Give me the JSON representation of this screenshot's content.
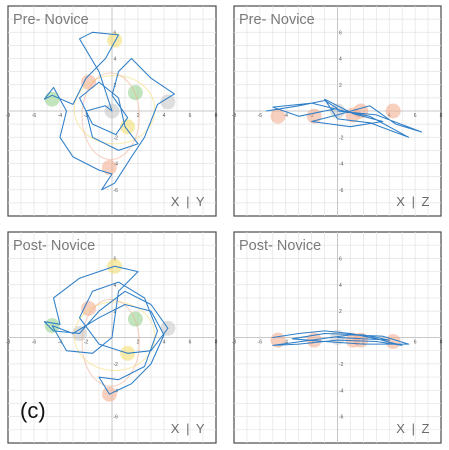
{
  "panel_label": "(c)",
  "colors": {
    "path": "#2f7fc8",
    "marker_orange": "#f2a98c",
    "marker_yellow": "#f3dc6a",
    "marker_green": "#8fcf86",
    "marker_gray": "#c4c4c4"
  },
  "chart_data": [
    {
      "id": "pre-xy",
      "type": "line",
      "title": "Pre- Novice",
      "plane_label": "X | Y",
      "xlim": [
        -8,
        8
      ],
      "ylim": [
        -8,
        8
      ],
      "xticks": [
        "-8",
        "-6",
        "-4",
        "-2",
        "0",
        "2",
        "4",
        "6",
        "8"
      ],
      "yticks": [
        "-8",
        "-6",
        "-4",
        "-2",
        "0",
        "2",
        "4",
        "6",
        "8"
      ],
      "markers": [
        {
          "x": 0.2,
          "y": 5.4,
          "color": "#f3dc6a"
        },
        {
          "x": -1.8,
          "y": 2.2,
          "color": "#f2a98c"
        },
        {
          "x": 1.8,
          "y": 1.4,
          "color": "#8fcf86"
        },
        {
          "x": -4.6,
          "y": 0.9,
          "color": "#8fcf86"
        },
        {
          "x": 4.3,
          "y": 0.7,
          "color": "#c4c4c4"
        },
        {
          "x": 0.0,
          "y": 0.0,
          "color": "#c4c4c4"
        },
        {
          "x": 1.2,
          "y": -1.2,
          "color": "#f3dc6a"
        },
        {
          "x": -0.2,
          "y": -4.3,
          "color": "#f2a98c"
        }
      ],
      "path": [
        [
          0,
          0
        ],
        [
          -1,
          3
        ],
        [
          -2.5,
          5.5
        ],
        [
          -1.5,
          6
        ],
        [
          0.5,
          5.8
        ],
        [
          -0.5,
          4
        ],
        [
          -2,
          2.5
        ],
        [
          -3,
          0.5
        ],
        [
          -4.6,
          1.2
        ],
        [
          -5.2,
          0.9
        ],
        [
          -4.5,
          1.8
        ],
        [
          -3.5,
          0
        ],
        [
          -4,
          -2
        ],
        [
          -3,
          -3.5
        ],
        [
          -1,
          -4.5
        ],
        [
          0,
          -4.8
        ],
        [
          -0.8,
          -6
        ],
        [
          0.2,
          -5.5
        ],
        [
          1.5,
          -3.5
        ],
        [
          2.5,
          -2
        ],
        [
          3.5,
          0.5
        ],
        [
          4.8,
          1.3
        ],
        [
          3,
          2.5
        ],
        [
          1.5,
          4
        ],
        [
          0.5,
          3
        ],
        [
          0,
          1.2
        ],
        [
          1.2,
          -0.5
        ],
        [
          0.3,
          -1.8
        ],
        [
          -1.5,
          -1
        ],
        [
          -2.5,
          1
        ],
        [
          -1,
          2.2
        ],
        [
          0.5,
          1
        ],
        [
          1,
          -1.2
        ],
        [
          2,
          -2.5
        ],
        [
          0.5,
          -3
        ],
        [
          -1.5,
          -2
        ],
        [
          -2,
          0
        ],
        [
          -0.5,
          0.4
        ],
        [
          0,
          0
        ]
      ]
    },
    {
      "id": "pre-xz",
      "type": "line",
      "title": "Pre- Novice",
      "plane_label": "X | Z",
      "xlim": [
        -8,
        8
      ],
      "ylim": [
        -8,
        8
      ],
      "xticks": [
        "-8",
        "-6",
        "-4",
        "-2",
        "0",
        "2",
        "4",
        "6",
        "8"
      ],
      "yticks": [
        "-8",
        "-6",
        "-4",
        "-2",
        "0",
        "2",
        "4",
        "6",
        "8"
      ],
      "markers": [
        {
          "x": -4.6,
          "y": -0.4,
          "color": "#f2a98c"
        },
        {
          "x": -1.8,
          "y": -0.4,
          "color": "#f2a98c"
        },
        {
          "x": 0.0,
          "y": 0.0,
          "color": "#c4c4c4"
        },
        {
          "x": 1.2,
          "y": -0.3,
          "color": "#f2a98c"
        },
        {
          "x": 1.8,
          "y": 0.0,
          "color": "#f2a98c"
        },
        {
          "x": 4.3,
          "y": 0.0,
          "color": "#f2a98c"
        }
      ],
      "path": [
        [
          -5.5,
          0
        ],
        [
          -3,
          0.4
        ],
        [
          -1,
          0.8
        ],
        [
          0,
          0.2
        ],
        [
          -3,
          -0.4
        ],
        [
          -5,
          0.3
        ],
        [
          -2,
          0.6
        ],
        [
          0.5,
          0
        ],
        [
          2.5,
          -0.4
        ],
        [
          5.5,
          -2
        ],
        [
          2.5,
          -0.9
        ],
        [
          0,
          -0.6
        ],
        [
          -1,
          0.9
        ],
        [
          1.2,
          -0.2
        ],
        [
          3.5,
          -0.8
        ],
        [
          1,
          -1.2
        ],
        [
          -2,
          -0.8
        ],
        [
          0,
          -0.3
        ],
        [
          2.5,
          0.4
        ],
        [
          4.5,
          -1
        ],
        [
          6.5,
          -1.6
        ],
        [
          3,
          -0.3
        ],
        [
          0,
          0
        ]
      ]
    },
    {
      "id": "post-xy",
      "type": "line",
      "title": "Post- Novice",
      "plane_label": "X | Y",
      "xlim": [
        -8,
        8
      ],
      "ylim": [
        -8,
        8
      ],
      "xticks": [
        "-8",
        "-6",
        "-4",
        "-2",
        "0",
        "2",
        "4",
        "6",
        "8"
      ],
      "yticks": [
        "-8",
        "-6",
        "-4",
        "-2",
        "0",
        "2",
        "4",
        "6",
        "8"
      ],
      "markers": [
        {
          "x": 0.2,
          "y": 5.4,
          "color": "#f3dc6a"
        },
        {
          "x": -1.8,
          "y": 2.2,
          "color": "#f2a98c"
        },
        {
          "x": 1.8,
          "y": 1.4,
          "color": "#8fcf86"
        },
        {
          "x": -4.6,
          "y": 0.9,
          "color": "#8fcf86"
        },
        {
          "x": 4.3,
          "y": 0.7,
          "color": "#c4c4c4"
        },
        {
          "x": -2.5,
          "y": 0.3,
          "color": "#c4c4c4"
        },
        {
          "x": 1.2,
          "y": -1.2,
          "color": "#f3dc6a"
        },
        {
          "x": -0.2,
          "y": -4.3,
          "color": "#f2a98c"
        }
      ],
      "path": [
        [
          0,
          0
        ],
        [
          0.5,
          3.5
        ],
        [
          2,
          5
        ],
        [
          0.2,
          5.4
        ],
        [
          -2.5,
          4.5
        ],
        [
          -4.5,
          3
        ],
        [
          -4,
          1
        ],
        [
          -5.2,
          1.2
        ],
        [
          -4.5,
          0.5
        ],
        [
          -2.5,
          0.3
        ],
        [
          -1,
          2
        ],
        [
          1,
          3.5
        ],
        [
          3,
          2.5
        ],
        [
          4.3,
          0.7
        ],
        [
          3,
          -1
        ],
        [
          1.2,
          -1.2
        ],
        [
          -1,
          -0.5
        ],
        [
          -2.5,
          1.5
        ],
        [
          -1.5,
          3.5
        ],
        [
          0.5,
          4.2
        ],
        [
          2.5,
          3
        ],
        [
          3.5,
          0.5
        ],
        [
          2.5,
          -2.2
        ],
        [
          0.5,
          -3.2
        ],
        [
          -1,
          -3
        ],
        [
          -0.2,
          -4.3
        ],
        [
          1.5,
          -3.5
        ],
        [
          3,
          -2
        ],
        [
          4,
          0.2
        ],
        [
          3,
          2
        ],
        [
          1,
          2.5
        ],
        [
          -1,
          1.5
        ],
        [
          -3,
          0.3
        ],
        [
          -4.6,
          0.9
        ],
        [
          -3.5,
          -1
        ],
        [
          -1.5,
          -1.2
        ],
        [
          0,
          0
        ]
      ]
    },
    {
      "id": "post-xz",
      "type": "line",
      "title": "Post- Novice",
      "plane_label": "X | Z",
      "xlim": [
        -8,
        8
      ],
      "ylim": [
        -8,
        8
      ],
      "xticks": [
        "-8",
        "-6",
        "-4",
        "-2",
        "0",
        "2",
        "4",
        "6",
        "8"
      ],
      "yticks": [
        "-8",
        "-6",
        "-4",
        "-2",
        "0",
        "2",
        "4",
        "6",
        "8"
      ],
      "markers": [
        {
          "x": -4.6,
          "y": -0.2,
          "color": "#f2a98c"
        },
        {
          "x": -1.8,
          "y": -0.2,
          "color": "#f2a98c"
        },
        {
          "x": 0.0,
          "y": 0.0,
          "color": "#c4c4c4"
        },
        {
          "x": 1.2,
          "y": -0.2,
          "color": "#f2a98c"
        },
        {
          "x": 1.8,
          "y": -0.2,
          "color": "#f2a98c"
        },
        {
          "x": 4.3,
          "y": -0.3,
          "color": "#f2a98c"
        }
      ],
      "path": [
        [
          -5,
          0
        ],
        [
          -3,
          0.3
        ],
        [
          -1,
          0.5
        ],
        [
          1,
          0.3
        ],
        [
          3,
          -0.1
        ],
        [
          5,
          -0.6
        ],
        [
          3,
          -0.3
        ],
        [
          0,
          -0.2
        ],
        [
          -3,
          -0.5
        ],
        [
          -5,
          -0.6
        ],
        [
          -2,
          -0.2
        ],
        [
          1,
          0.2
        ],
        [
          3.5,
          0.1
        ],
        [
          5.5,
          -0.5
        ],
        [
          2,
          -0.5
        ],
        [
          -1,
          -0.3
        ],
        [
          -3.5,
          -0.1
        ],
        [
          -1,
          0.3
        ],
        [
          2,
          0.2
        ],
        [
          4,
          -0.2
        ],
        [
          0,
          0
        ]
      ]
    }
  ]
}
